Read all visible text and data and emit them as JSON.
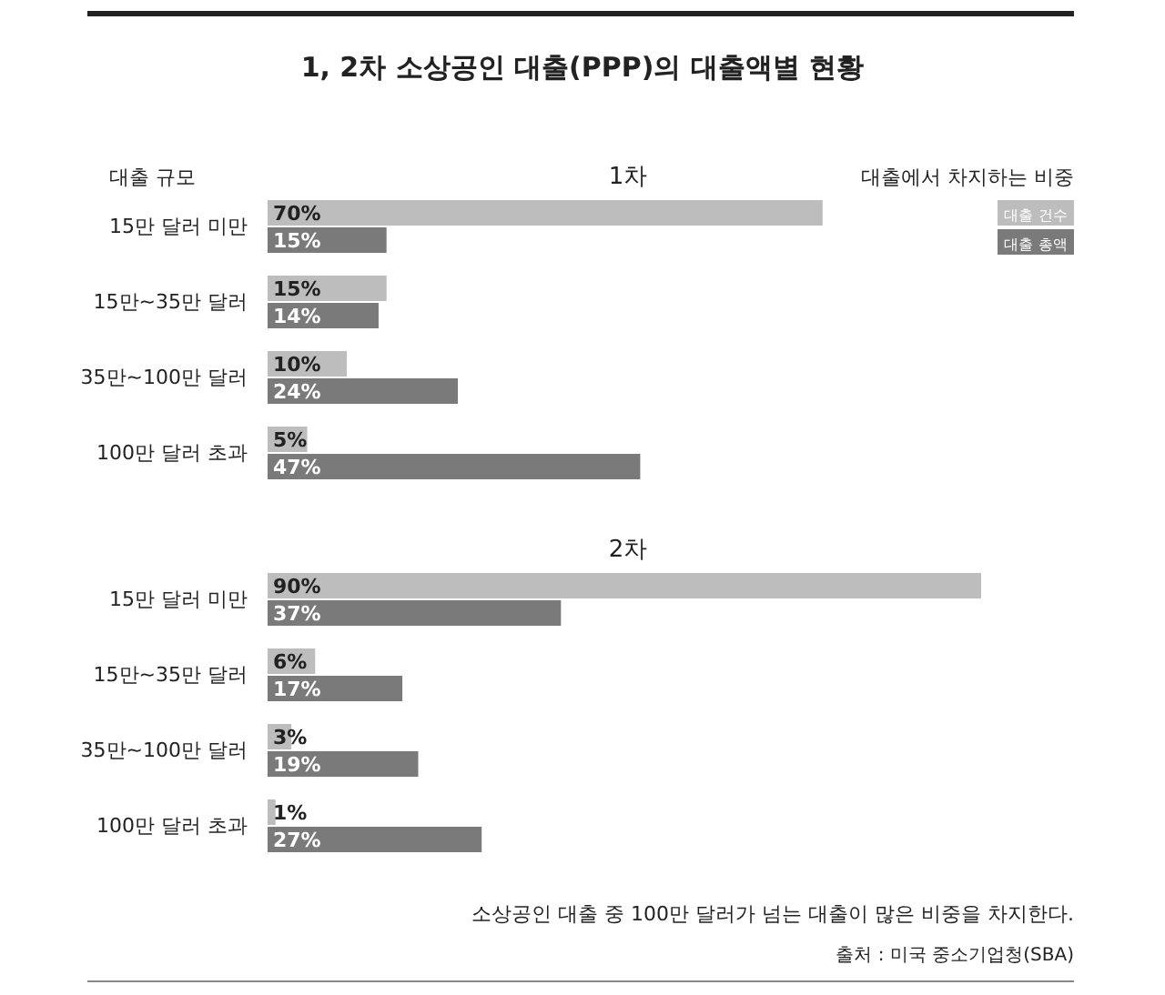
{
  "chart_data": [
    {
      "type": "bar",
      "orientation": "horizontal",
      "title": "1, 2차 소상공인 대출(PPP)의 대출액별 현황",
      "subtitle": "1차",
      "ylabel": "대출 규모",
      "legend_title": "대출에서 차지하는 비중",
      "legend": "top right",
      "categories": [
        "15만 달러 미만",
        "15만~35만 달러",
        "35만~100만 달러",
        "100만 달러 초과"
      ],
      "series": [
        {
          "name": "대출 건수",
          "color": "#bdbdbd",
          "values": [
            70,
            15,
            10,
            5
          ],
          "value_labels": [
            "70%",
            "15%",
            "10%",
            "5%"
          ]
        },
        {
          "name": "대출 총액",
          "color": "#7a7a7a",
          "values": [
            15,
            14,
            24,
            47
          ],
          "value_labels": [
            "15%",
            "14%",
            "24%",
            "47%"
          ]
        }
      ]
    },
    {
      "type": "bar",
      "orientation": "horizontal",
      "subtitle": "2차",
      "categories": [
        "15만 달러 미만",
        "15만~35만 달러",
        "35만~100만 달러",
        "100만 달러 초과"
      ],
      "series": [
        {
          "color": "#bdbdbd",
          "values": [
            90,
            6,
            3,
            1
          ],
          "value_labels": [
            "90%",
            "6%",
            "3%",
            "1%"
          ]
        },
        {
          "color": "#7a7a7a",
          "values": [
            37,
            17,
            19,
            27
          ],
          "value_labels": [
            "37%",
            "17%",
            "19%",
            "27%"
          ]
        }
      ],
      "annotations": [
        "소상공인 대출 중 100만 달러가 넘는 대출이 많은 비중을 차지한다.",
        "출처 : 미국 중소기업청(SBA)"
      ]
    }
  ]
}
